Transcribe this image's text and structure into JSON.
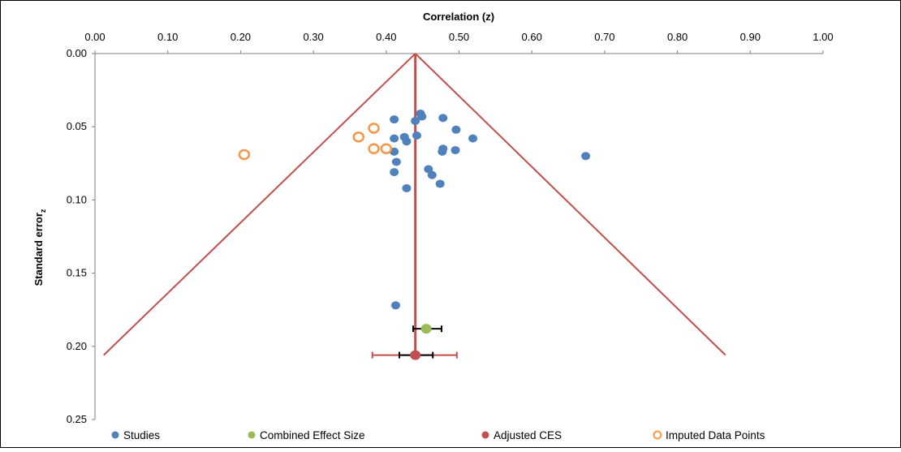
{
  "chart_data": {
    "type": "scatter",
    "title": "",
    "xlabel": "Correlation (z)",
    "ylabel": "Standard error",
    "ylabel_subscript": "z",
    "xlim": [
      0.0,
      1.0
    ],
    "ylim": [
      0.0,
      0.25
    ],
    "y_inverted": true,
    "x_axis_position": "top",
    "x_ticks": [
      "0.00",
      "0.10",
      "0.20",
      "0.30",
      "0.40",
      "0.50",
      "0.60",
      "0.70",
      "0.80",
      "0.90",
      "1.00"
    ],
    "y_ticks": [
      "0.00",
      "0.05",
      "0.10",
      "0.15",
      "0.20",
      "0.25"
    ],
    "grid": false,
    "legend_position": "bottom",
    "colors": {
      "studies": "#4F81BD",
      "combined": "#9BBB59",
      "adjusted": "#C0504D",
      "imputed": "#F79646",
      "funnel": "#C0504D"
    },
    "series": [
      {
        "name": "Studies",
        "marker": "filled-circle",
        "points": [
          [
            0.447,
            0.041
          ],
          [
            0.449,
            0.043
          ],
          [
            0.411,
            0.045
          ],
          [
            0.478,
            0.044
          ],
          [
            0.44,
            0.046
          ],
          [
            0.496,
            0.052
          ],
          [
            0.442,
            0.056
          ],
          [
            0.411,
            0.058
          ],
          [
            0.425,
            0.057
          ],
          [
            0.428,
            0.06
          ],
          [
            0.519,
            0.058
          ],
          [
            0.478,
            0.065
          ],
          [
            0.495,
            0.066
          ],
          [
            0.477,
            0.067
          ],
          [
            0.411,
            0.067
          ],
          [
            0.674,
            0.07
          ],
          [
            0.414,
            0.074
          ],
          [
            0.458,
            0.079
          ],
          [
            0.463,
            0.083
          ],
          [
            0.411,
            0.081
          ],
          [
            0.474,
            0.089
          ],
          [
            0.428,
            0.092
          ],
          [
            0.413,
            0.172
          ]
        ]
      },
      {
        "name": "Combined Effect Size",
        "marker": "filled-circle",
        "points": [
          [
            0.455,
            0.188
          ]
        ],
        "ci": [
          0.437,
          0.476
        ]
      },
      {
        "name": "Adjusted CES",
        "marker": "filled-circle",
        "points": [
          [
            0.44,
            0.206
          ]
        ],
        "ci": [
          0.418,
          0.464
        ],
        "pi": [
          0.381,
          0.497
        ]
      },
      {
        "name": "Imputed Data Points",
        "marker": "open-circle",
        "points": [
          [
            0.383,
            0.051
          ],
          [
            0.362,
            0.057
          ],
          [
            0.383,
            0.065
          ],
          [
            0.4,
            0.065
          ],
          [
            0.205,
            0.069
          ]
        ]
      }
    ],
    "funnel": {
      "center_x": 0.44,
      "apex_y": 0.0,
      "base_y": 0.206,
      "left_x": 0.012,
      "right_x": 0.866
    }
  },
  "legend": {
    "studies": "Studies",
    "combined": "Combined Effect Size",
    "adjusted": "Adjusted CES",
    "imputed": "Imputed Data Points"
  }
}
